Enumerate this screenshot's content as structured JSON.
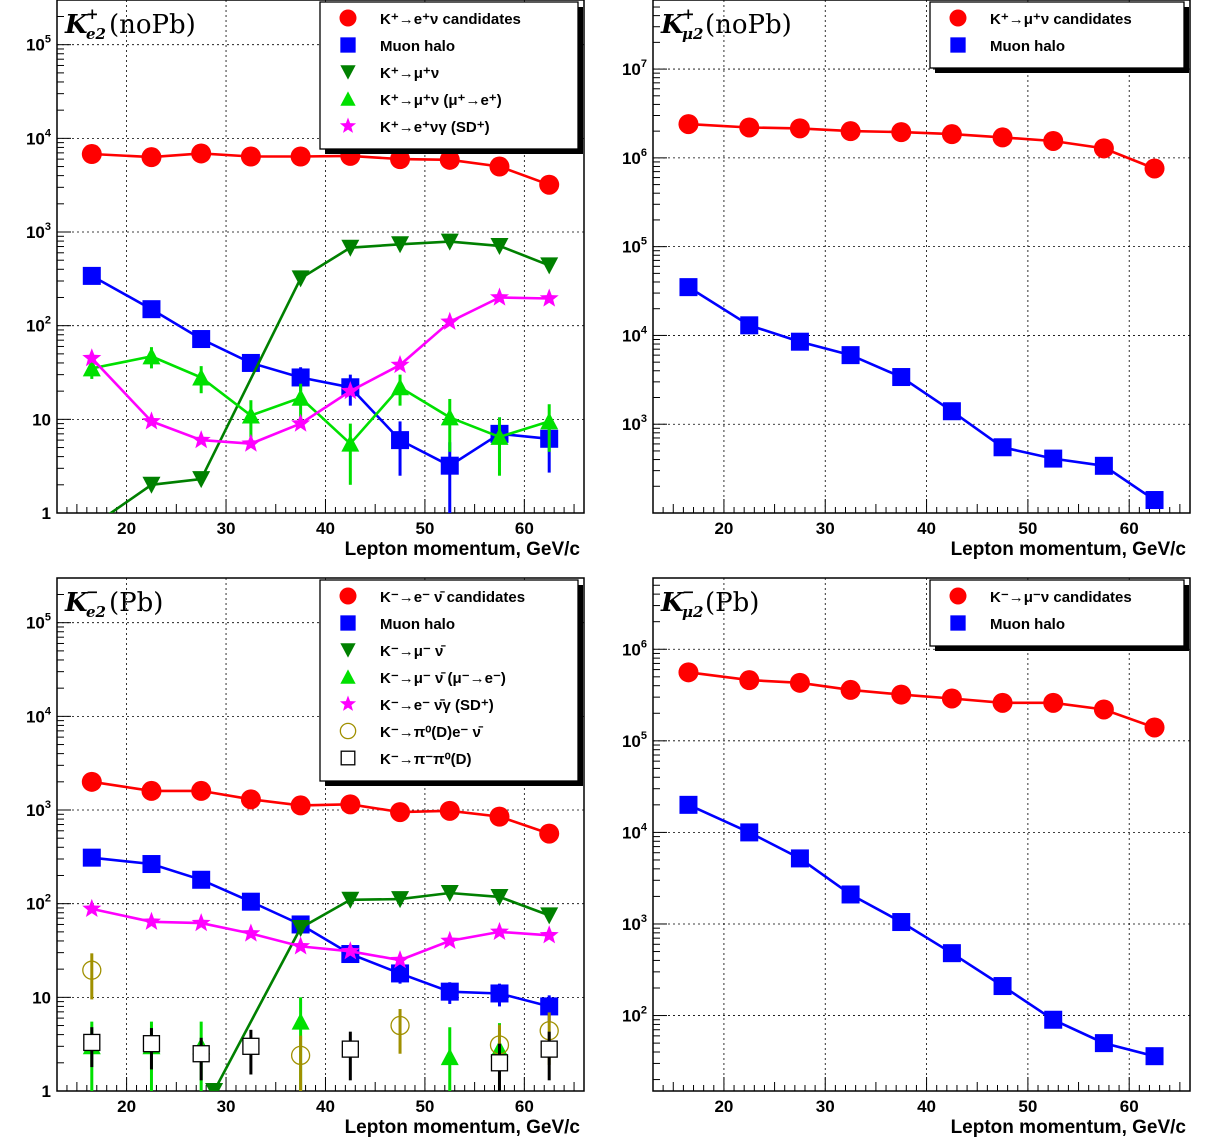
{
  "chart_data": [
    {
      "type": "line",
      "panel": "top-left",
      "title": {
        "main": "K",
        "sup": "+",
        "sub": "e2",
        "suffix": "(noPb)"
      },
      "xlabel": "Lepton momentum, GeV/c",
      "ylabel": "",
      "x_scale": "linear",
      "y_scale": "log",
      "xlim": [
        13,
        66
      ],
      "ylim": [
        1,
        300000
      ],
      "xticks": [
        20,
        30,
        40,
        50,
        60
      ],
      "yticks": [
        {
          "v": 1,
          "base": "1",
          "exp": ""
        },
        {
          "v": 10,
          "base": "10",
          "exp": ""
        },
        {
          "v": 100,
          "base": "10",
          "exp": "2"
        },
        {
          "v": 1000,
          "base": "10",
          "exp": "3"
        },
        {
          "v": 10000,
          "base": "10",
          "exp": "4"
        },
        {
          "v": 100000,
          "base": "10",
          "exp": "5"
        }
      ],
      "grid": true,
      "legend": "top-right",
      "legend_width": 258,
      "x": [
        16.5,
        22.5,
        27.5,
        32.5,
        37.5,
        42.5,
        47.5,
        52.5,
        57.5,
        62.5
      ],
      "series": [
        {
          "name": "K⁺→e⁺ν candidates",
          "marker": "circle",
          "color": "#ff0000",
          "line": true,
          "values": [
            6800,
            6300,
            6900,
            6400,
            6400,
            6500,
            6000,
            5900,
            5000,
            3200
          ]
        },
        {
          "name": "Muon halo",
          "marker": "square",
          "color": "#0000ff",
          "line": true,
          "values": [
            340,
            150,
            72,
            40,
            28,
            22,
            6,
            3.2,
            7,
            6.2
          ],
          "err": [
            0,
            0,
            0,
            0,
            8,
            8,
            3.5,
            2.5,
            3.5,
            3.5
          ]
        },
        {
          "name": "K⁺→μ⁺ν",
          "marker": "triangle-down",
          "color": "#008000",
          "line": true,
          "x": [
            13,
            22.5,
            27.5,
            37.5,
            42.5,
            47.5,
            52.5,
            57.5,
            62.5
          ],
          "values": [
            0.4,
            2.0,
            2.3,
            320,
            680,
            740,
            790,
            710,
            440
          ]
        },
        {
          "name": "K⁺→μ⁺ν (μ⁺→e⁺)",
          "marker": "triangle-up",
          "color": "#00e000",
          "line": true,
          "values": [
            35,
            47,
            28,
            11,
            17,
            5.5,
            22,
            10.5,
            6.5,
            9.5
          ],
          "err": [
            8,
            12,
            9,
            5,
            7,
            3.5,
            8,
            6,
            4,
            5
          ]
        },
        {
          "name": "K⁺→e⁺νγ (SD⁺)",
          "marker": "star",
          "color": "#ff00ff",
          "line": true,
          "values": [
            45,
            9.5,
            6,
            5.5,
            9,
            20,
            38,
            110,
            200,
            195
          ]
        }
      ]
    },
    {
      "type": "line",
      "panel": "top-right",
      "title": {
        "main": "K",
        "sup": "+",
        "sub": "μ2",
        "suffix": "(noPb)"
      },
      "xlabel": "Lepton momentum, GeV/c",
      "ylabel": "",
      "x_scale": "linear",
      "y_scale": "log",
      "xlim": [
        13,
        66
      ],
      "ylim": [
        100,
        60000000
      ],
      "xticks": [
        20,
        30,
        40,
        50,
        60
      ],
      "yticks": [
        {
          "v": 1000,
          "base": "10",
          "exp": "3"
        },
        {
          "v": 10000,
          "base": "10",
          "exp": "4"
        },
        {
          "v": 100000,
          "base": "10",
          "exp": "5"
        },
        {
          "v": 1000000,
          "base": "10",
          "exp": "6"
        },
        {
          "v": 10000000,
          "base": "10",
          "exp": "7"
        }
      ],
      "grid": true,
      "legend": "top-right",
      "legend_width": 254,
      "x": [
        16.5,
        22.5,
        27.5,
        32.5,
        37.5,
        42.5,
        47.5,
        52.5,
        57.5,
        62.5
      ],
      "series": [
        {
          "name": "K⁺→μ⁺ν candidates",
          "marker": "circle",
          "color": "#ff0000",
          "line": true,
          "values": [
            2400000,
            2200000,
            2150000,
            2000000,
            1950000,
            1850000,
            1700000,
            1550000,
            1280000,
            760000
          ]
        },
        {
          "name": "Muon halo",
          "marker": "square",
          "color": "#0000ff",
          "line": true,
          "values": [
            35000,
            13000,
            8500,
            6000,
            3400,
            1400,
            550,
            410,
            340,
            140
          ]
        }
      ]
    },
    {
      "type": "line",
      "panel": "bottom-left",
      "title": {
        "main": "K",
        "sup": "−",
        "sub": "e2",
        "suffix": "(Pb)"
      },
      "xlabel": "Lepton momentum, GeV/c",
      "ylabel": "",
      "x_scale": "linear",
      "y_scale": "log",
      "xlim": [
        13,
        66
      ],
      "ylim": [
        1,
        300000
      ],
      "xticks": [
        20,
        30,
        40,
        50,
        60
      ],
      "yticks": [
        {
          "v": 1,
          "base": "1",
          "exp": ""
        },
        {
          "v": 10,
          "base": "10",
          "exp": ""
        },
        {
          "v": 100,
          "base": "10",
          "exp": "2"
        },
        {
          "v": 1000,
          "base": "10",
          "exp": "3"
        },
        {
          "v": 10000,
          "base": "10",
          "exp": "4"
        },
        {
          "v": 100000,
          "base": "10",
          "exp": "5"
        }
      ],
      "grid": true,
      "legend": "top-right",
      "legend_width": 258,
      "x": [
        16.5,
        22.5,
        27.5,
        32.5,
        37.5,
        42.5,
        47.5,
        52.5,
        57.5,
        62.5
      ],
      "series": [
        {
          "name": "K⁻→e⁻ ν̄ candidates",
          "marker": "circle",
          "color": "#ff0000",
          "line": true,
          "values": [
            2000,
            1600,
            1600,
            1300,
            1120,
            1150,
            950,
            980,
            850,
            560
          ]
        },
        {
          "name": "Muon halo",
          "marker": "square",
          "color": "#0000ff",
          "line": true,
          "values": [
            310,
            265,
            180,
            105,
            60,
            29,
            18,
            11.5,
            11,
            8
          ],
          "err": [
            0,
            0,
            0,
            0,
            0,
            0,
            4,
            3,
            3,
            2.5
          ]
        },
        {
          "name": "K⁻→μ⁻ ν̄",
          "marker": "triangle-down",
          "color": "#008000",
          "line": true,
          "x": [
            28.8,
            37.5,
            42.5,
            47.5,
            52.5,
            57.5,
            62.5
          ],
          "values": [
            1,
            55,
            110,
            112,
            130,
            118,
            75
          ]
        },
        {
          "name": "K⁻→μ⁻ ν̄ (μ⁻→e⁻)",
          "marker": "triangle-up",
          "color": "#00e000",
          "line": false,
          "values": [
            3,
            3,
            3,
            null,
            5.5,
            null,
            null,
            2.3,
            2.8,
            null
          ],
          "err": [
            2.5,
            2.5,
            2.5,
            0,
            4.5,
            0,
            0,
            2.5,
            2.5,
            0
          ]
        },
        {
          "name": "K⁻→e⁻ ν̄γ (SD⁺)",
          "marker": "star",
          "color": "#ff00ff",
          "line": true,
          "values": [
            88,
            64,
            62,
            48,
            35,
            31,
            25,
            40,
            50,
            46
          ]
        },
        {
          "name": "K⁻→π⁰(D)e⁻ ν̄",
          "marker": "open-circle",
          "color": "#a09000",
          "line": false,
          "values": [
            19.5,
            null,
            null,
            null,
            2.4,
            null,
            5,
            null,
            3.1,
            4.4
          ],
          "err": [
            10,
            0,
            0,
            0,
            1.5,
            0,
            2.5,
            0,
            2,
            2.5
          ]
        },
        {
          "name": "K⁻→π⁻π⁰(D)",
          "marker": "open-square",
          "color": "#000000",
          "line": false,
          "values": [
            3.3,
            3.2,
            2.5,
            3,
            null,
            2.8,
            null,
            null,
            2,
            2.8
          ],
          "err": [
            1.5,
            1.5,
            1.2,
            1.5,
            0,
            1.5,
            0,
            0,
            1.2,
            1.5
          ]
        }
      ]
    },
    {
      "type": "line",
      "panel": "bottom-right",
      "title": {
        "main": "K",
        "sup": "−",
        "sub": "μ2",
        "suffix": "(Pb)"
      },
      "xlabel": "Lepton momentum, GeV/c",
      "ylabel": "",
      "x_scale": "linear",
      "y_scale": "log",
      "xlim": [
        13,
        66
      ],
      "ylim": [
        15,
        6000000
      ],
      "xticks": [
        20,
        30,
        40,
        50,
        60
      ],
      "yticks": [
        {
          "v": 100,
          "base": "10",
          "exp": "2"
        },
        {
          "v": 1000,
          "base": "10",
          "exp": "3"
        },
        {
          "v": 10000,
          "base": "10",
          "exp": "4"
        },
        {
          "v": 100000,
          "base": "10",
          "exp": "5"
        },
        {
          "v": 1000000,
          "base": "10",
          "exp": "6"
        }
      ],
      "grid": true,
      "legend": "top-right",
      "legend_width": 254,
      "x": [
        16.5,
        22.5,
        27.5,
        32.5,
        37.5,
        42.5,
        47.5,
        52.5,
        57.5,
        62.5
      ],
      "series": [
        {
          "name": "K⁻→μ⁻ν candidates",
          "marker": "circle",
          "color": "#ff0000",
          "line": true,
          "values": [
            560000,
            460000,
            430000,
            360000,
            320000,
            290000,
            260000,
            260000,
            220000,
            140000
          ]
        },
        {
          "name": "Muon halo",
          "marker": "square",
          "color": "#0000ff",
          "line": true,
          "values": [
            20000,
            10000,
            5200,
            2100,
            1050,
            480,
            210,
            90,
            50,
            36
          ]
        }
      ]
    }
  ]
}
